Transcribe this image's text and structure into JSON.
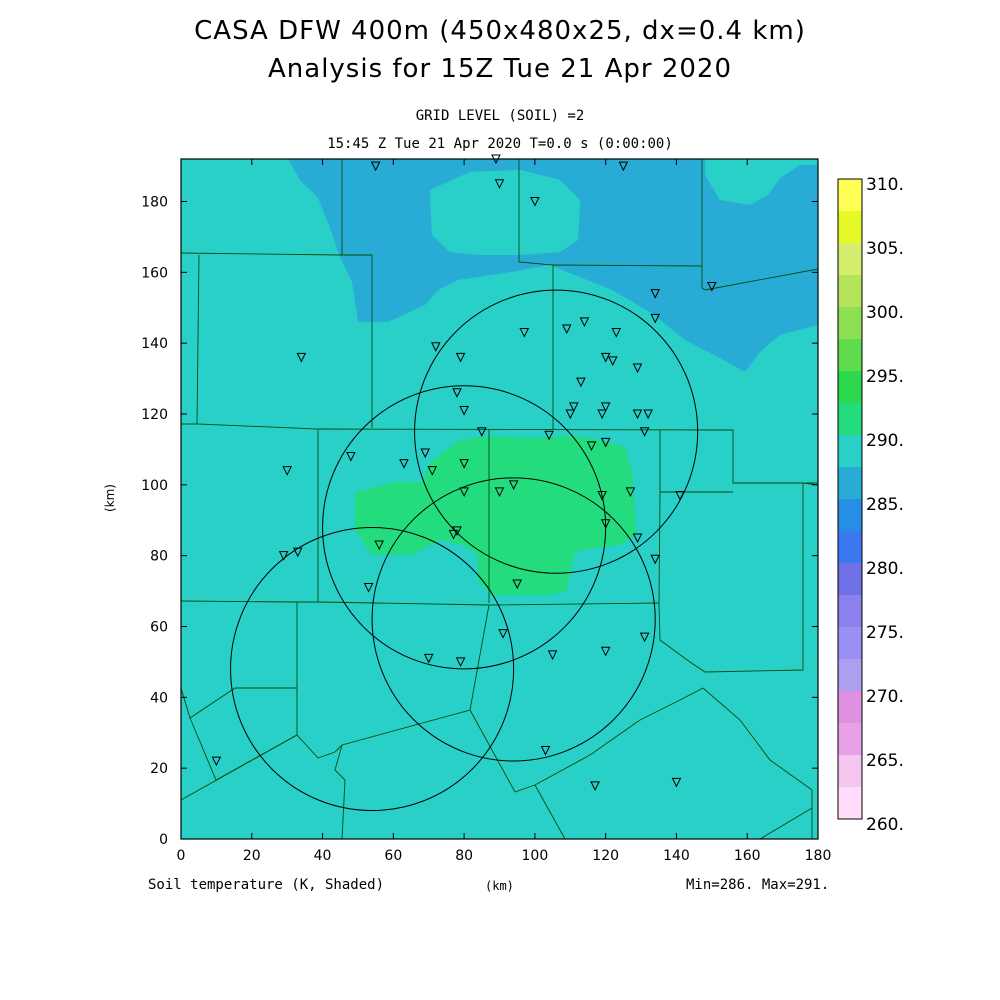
{
  "title_line1": "CASA DFW 400m (450x480x25, dx=0.4 km)",
  "title_line2": "Analysis for 15Z Tue 21 Apr 2020",
  "subtitle_line1": "GRID LEVEL (SOIL) =2",
  "subtitle_line2": "15:45 Z Tue 21 Apr 2020   T=0.0 s (0:00:00)",
  "footer": {
    "variable": "Soil temperature (K, Shaded)",
    "x_unit": "(km)",
    "minmax": "Min=286. Max=291."
  },
  "colors": {
    "shade_290": "#28d0c8",
    "shade_285": "#28acd6",
    "shade_295": "#22dc7e"
  },
  "chart_data": {
    "type": "heatmap",
    "xlabel": "(km)",
    "ylabel": "(km)",
    "xlim": [
      0,
      180
    ],
    "ylim": [
      0,
      192
    ],
    "x_ticks": [
      0,
      20,
      40,
      60,
      80,
      100,
      120,
      140,
      160,
      180
    ],
    "y_ticks": [
      0,
      20,
      40,
      60,
      80,
      100,
      120,
      140,
      160,
      180
    ],
    "min": 286,
    "max": 291,
    "colorbar": {
      "labels": [
        "310.",
        "305.",
        "300.",
        "295.",
        "290.",
        "285.",
        "280.",
        "275.",
        "270.",
        "265.",
        "260."
      ],
      "bins": [
        {
          "lo": 305,
          "hi": 310,
          "color": "#ffff55"
        },
        {
          "lo": 302.5,
          "hi": 305,
          "color": "#e6fa2a"
        },
        {
          "lo": 300,
          "hi": 302.5,
          "color": "#d6ee6e"
        },
        {
          "lo": 297.5,
          "hi": 300,
          "color": "#b4e45a"
        },
        {
          "lo": 295,
          "hi": 297.5,
          "color": "#8ce052"
        },
        {
          "lo": 292.5,
          "hi": 295,
          "color": "#5edc4e"
        },
        {
          "lo": 290,
          "hi": 292.5,
          "color": "#2cd84e"
        },
        {
          "lo": 287.5,
          "hi": 290,
          "color": "#22dc7e"
        },
        {
          "lo": 285,
          "hi": 287.5,
          "color": "#28d0c8"
        },
        {
          "lo": 282.5,
          "hi": 285,
          "color": "#28acd6"
        },
        {
          "lo": 280,
          "hi": 282.5,
          "color": "#268ee4"
        },
        {
          "lo": 277.5,
          "hi": 280,
          "color": "#3c78f0"
        },
        {
          "lo": 275,
          "hi": 277.5,
          "color": "#7070e6"
        },
        {
          "lo": 272.5,
          "hi": 275,
          "color": "#8c80ec"
        },
        {
          "lo": 270,
          "hi": 272.5,
          "color": "#9a90f4"
        },
        {
          "lo": 267.5,
          "hi": 270,
          "color": "#ae9ef0"
        },
        {
          "lo": 265,
          "hi": 267.5,
          "color": "#e090e0"
        },
        {
          "lo": 262.5,
          "hi": 265,
          "color": "#e8a0e6"
        },
        {
          "lo": 260,
          "hi": 262.5,
          "color": "#f4c6f0"
        },
        {
          "lo": 257.5,
          "hi": 260,
          "color": "#ffdcfa"
        }
      ]
    },
    "radar_rings_km": [
      {
        "cx": 106,
        "cy": 115,
        "r": 40
      },
      {
        "cx": 80,
        "cy": 88,
        "r": 40
      },
      {
        "cx": 94,
        "cy": 62,
        "r": 40
      },
      {
        "cx": 54,
        "cy": 48,
        "r": 40
      }
    ],
    "stations_km": [
      [
        55,
        190
      ],
      [
        89,
        192
      ],
      [
        90,
        185
      ],
      [
        125,
        190
      ],
      [
        100,
        180
      ],
      [
        150,
        156
      ],
      [
        134,
        154
      ],
      [
        134,
        147
      ],
      [
        97,
        143
      ],
      [
        109,
        144
      ],
      [
        114,
        146
      ],
      [
        123,
        143
      ],
      [
        72,
        139
      ],
      [
        79,
        136
      ],
      [
        34,
        136
      ],
      [
        120,
        136
      ],
      [
        122,
        135
      ],
      [
        129,
        133
      ],
      [
        113,
        129
      ],
      [
        78,
        126
      ],
      [
        111,
        122
      ],
      [
        120,
        122
      ],
      [
        80,
        121
      ],
      [
        110,
        120
      ],
      [
        119,
        120
      ],
      [
        129,
        120
      ],
      [
        132,
        120
      ],
      [
        131,
        115
      ],
      [
        85,
        115
      ],
      [
        104,
        114
      ],
      [
        120,
        112
      ],
      [
        116,
        111
      ],
      [
        48,
        108
      ],
      [
        69,
        109
      ],
      [
        80,
        106
      ],
      [
        63,
        106
      ],
      [
        71,
        104
      ],
      [
        30,
        104
      ],
      [
        94,
        100
      ],
      [
        90,
        98
      ],
      [
        127,
        98
      ],
      [
        80,
        98
      ],
      [
        119,
        97
      ],
      [
        141,
        97
      ],
      [
        120,
        89
      ],
      [
        78,
        87
      ],
      [
        129,
        85
      ],
      [
        77,
        86
      ],
      [
        56,
        83
      ],
      [
        33,
        81
      ],
      [
        29,
        80
      ],
      [
        134,
        79
      ],
      [
        95,
        72
      ],
      [
        53,
        71
      ],
      [
        91,
        58
      ],
      [
        131,
        57
      ],
      [
        120,
        53
      ],
      [
        105,
        52
      ],
      [
        70,
        51
      ],
      [
        79,
        50
      ],
      [
        103,
        25
      ],
      [
        10,
        22
      ],
      [
        140,
        16
      ],
      [
        117,
        15
      ]
    ]
  }
}
